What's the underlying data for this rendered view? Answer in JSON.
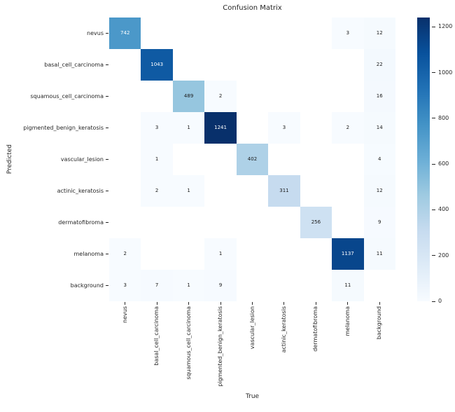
{
  "chart_data": {
    "type": "heatmap",
    "title": "Confusion Matrix",
    "xlabel": "True",
    "ylabel": "Predicted",
    "x_categories": [
      "nevus",
      "basal_cell_carcinoma",
      "squamous_cell_carcinoma",
      "pigmented_benign_keratosis",
      "vascular_lesion",
      "actinic_keratosis",
      "dermatofibroma",
      "melanoma",
      "background"
    ],
    "y_categories": [
      "nevus",
      "basal_cell_carcinoma",
      "squamous_cell_carcinoma",
      "pigmented_benign_keratosis",
      "vascular_lesion",
      "actinic_keratosis",
      "dermatofibroma",
      "melanoma",
      "background"
    ],
    "matrix": [
      [
        742,
        0,
        0,
        0,
        0,
        0,
        0,
        3,
        12
      ],
      [
        0,
        1043,
        0,
        0,
        0,
        0,
        0,
        0,
        22
      ],
      [
        0,
        0,
        489,
        2,
        0,
        0,
        0,
        0,
        16
      ],
      [
        0,
        3,
        1,
        1241,
        0,
        3,
        0,
        2,
        14
      ],
      [
        0,
        1,
        0,
        0,
        402,
        0,
        0,
        0,
        4
      ],
      [
        0,
        2,
        1,
        0,
        0,
        311,
        0,
        0,
        12
      ],
      [
        0,
        0,
        0,
        0,
        0,
        0,
        256,
        0,
        9
      ],
      [
        2,
        0,
        0,
        1,
        0,
        0,
        0,
        1137,
        11
      ],
      [
        3,
        7,
        1,
        9,
        0,
        0,
        0,
        11,
        0
      ]
    ],
    "vmin": 0,
    "vmax": 1241,
    "colormap": "Blues",
    "colormap_stops": [
      "#f7fbff",
      "#deebf7",
      "#c6dbef",
      "#9ecae1",
      "#6baed6",
      "#4292c6",
      "#2171b5",
      "#08519c",
      "#08306b"
    ],
    "zero_cell_color": "#ffffff",
    "hide_zero_annotations": true,
    "annotation_dark_text": "#1a1a1a",
    "annotation_light_text": "#ffffff",
    "axis_text_color": "#262626",
    "colorbar_ticks": [
      0,
      200,
      400,
      600,
      800,
      1000,
      1200
    ],
    "legend_position": "right-colorbar",
    "grid": false
  }
}
